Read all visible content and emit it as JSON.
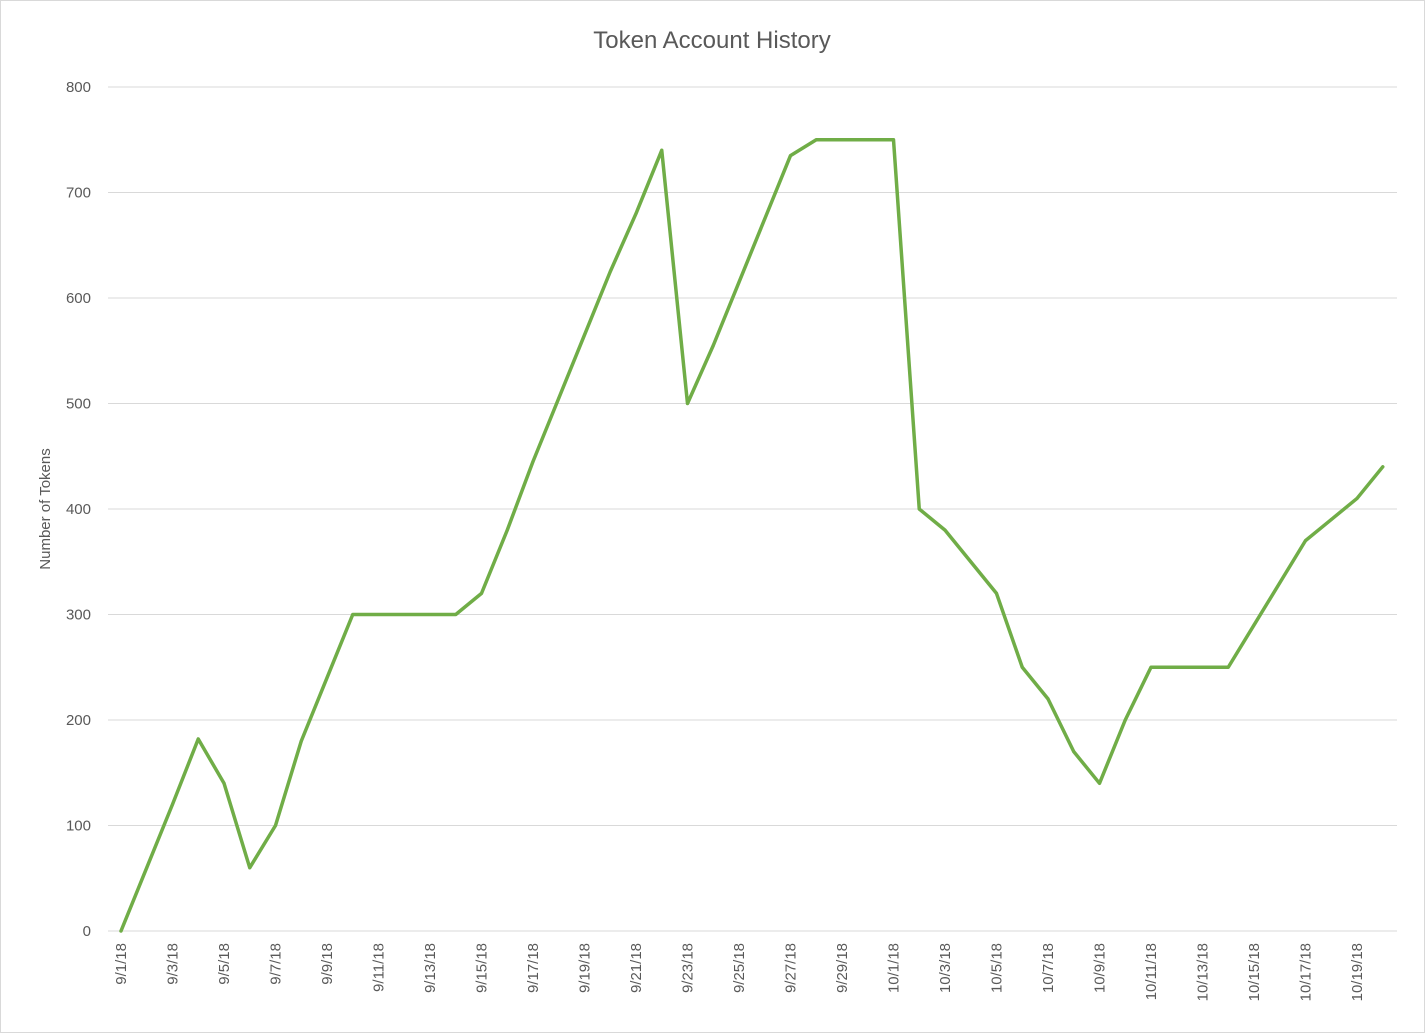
{
  "chart_data": {
    "type": "line",
    "title": "Token Account History",
    "xlabel": "",
    "ylabel": "Number of Tokens",
    "ylim": [
      0,
      800
    ],
    "yticks": [
      0,
      100,
      200,
      300,
      400,
      500,
      600,
      700,
      800
    ],
    "grid": true,
    "legend": "none",
    "x": [
      "9/1/18",
      "9/2/18",
      "9/3/18",
      "9/4/18",
      "9/5/18",
      "9/6/18",
      "9/7/18",
      "9/8/18",
      "9/9/18",
      "9/10/18",
      "9/11/18",
      "9/12/18",
      "9/13/18",
      "9/14/18",
      "9/15/18",
      "9/16/18",
      "9/17/18",
      "9/18/18",
      "9/19/18",
      "9/20/18",
      "9/21/18",
      "9/22/18",
      "9/23/18",
      "9/24/18",
      "9/25/18",
      "9/26/18",
      "9/27/18",
      "9/28/18",
      "9/29/18",
      "9/30/18",
      "10/1/18",
      "10/2/18",
      "10/3/18",
      "10/4/18",
      "10/5/18",
      "10/6/18",
      "10/7/18",
      "10/8/18",
      "10/9/18",
      "10/10/18",
      "10/11/18",
      "10/12/18",
      "10/13/18",
      "10/14/18",
      "10/15/18",
      "10/16/18",
      "10/17/18",
      "10/18/18",
      "10/19/18",
      "10/20/18"
    ],
    "xtick_labels": [
      "9/1/18",
      "9/3/18",
      "9/5/18",
      "9/7/18",
      "9/9/18",
      "9/11/18",
      "9/13/18",
      "9/15/18",
      "9/17/18",
      "9/19/18",
      "9/21/18",
      "9/23/18",
      "9/25/18",
      "9/27/18",
      "9/29/18",
      "10/1/18",
      "10/3/18",
      "10/5/18",
      "10/7/18",
      "10/9/18",
      "10/11/18",
      "10/13/18",
      "10/15/18",
      "10/17/18",
      "10/19/18"
    ],
    "series": [
      {
        "color": "#70ad47",
        "values": [
          0,
          60,
          120,
          182,
          140,
          60,
          100,
          180,
          240,
          300,
          300,
          300,
          300,
          300,
          320,
          380,
          445,
          505,
          565,
          625,
          680,
          740,
          500,
          555,
          615,
          675,
          735,
          750,
          750,
          750,
          750,
          400,
          380,
          350,
          320,
          250,
          220,
          170,
          140,
          200,
          250,
          250,
          250,
          250,
          290,
          330,
          370,
          390,
          410,
          440
        ]
      }
    ]
  }
}
